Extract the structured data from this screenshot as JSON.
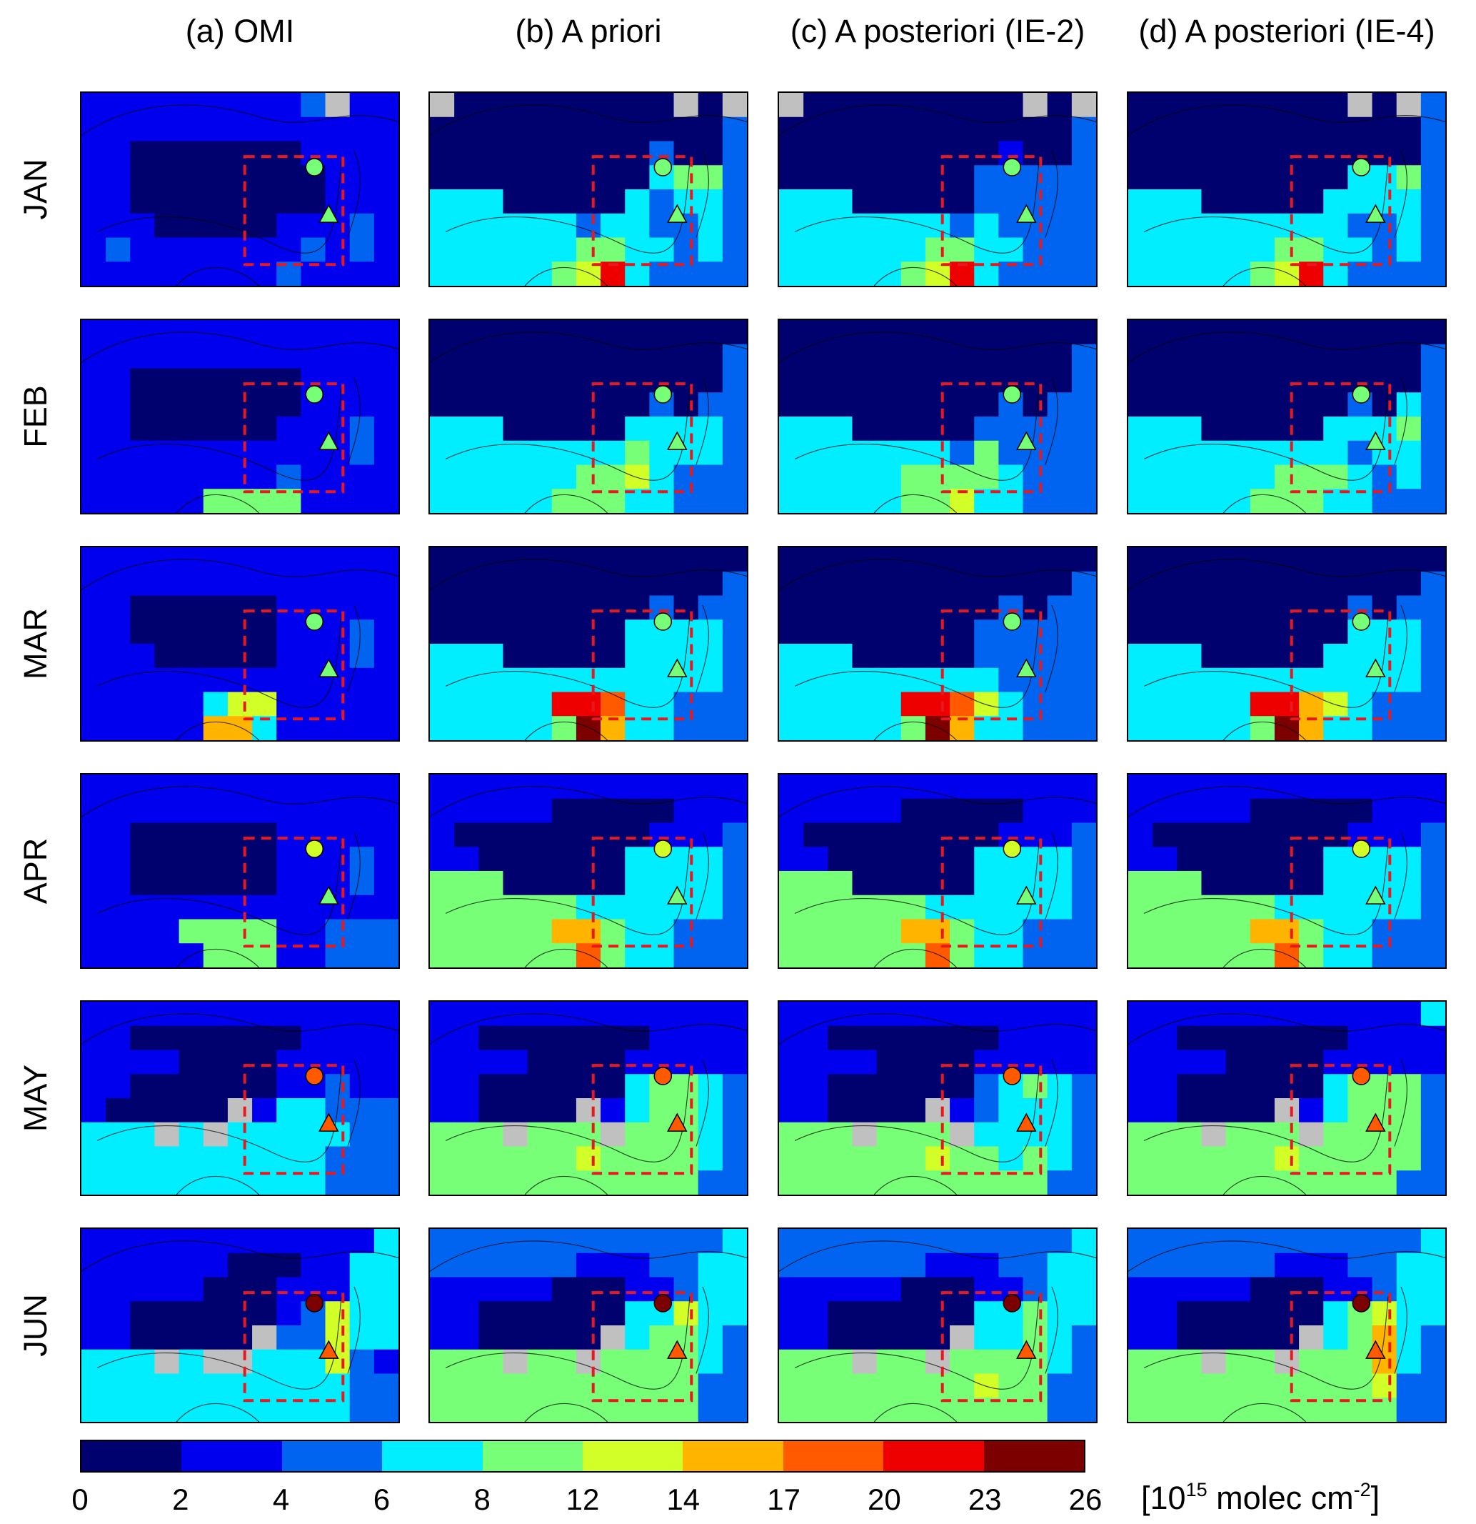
{
  "chart_data": {
    "type": "heatmap",
    "columns": [
      "(a) OMI",
      "(b) A priori",
      "(c) A posteriori (IE-2)",
      "(d) A posteriori (IE-4)"
    ],
    "rows": [
      "JAN",
      "FEB",
      "MAR",
      "APR",
      "MAY",
      "JUN"
    ],
    "colorbar": {
      "ticks": [
        "0",
        "2",
        "4",
        "6",
        "8",
        "12",
        "14",
        "17",
        "20",
        "23",
        "26"
      ],
      "colors": [
        "#00006e",
        "#0000ee",
        "#0064f0",
        "#00eeff",
        "#78ff78",
        "#d2ff28",
        "#ffb400",
        "#ff5a00",
        "#ee0000",
        "#7d0000"
      ],
      "unit_prefix": "[10",
      "unit_exp1": "15",
      "unit_mid": " molec cm",
      "unit_exp2": "-2",
      "unit_suffix": "]"
    },
    "missing_color": "#c0c0c0",
    "grid": {
      "cols": 13,
      "rows": 8
    },
    "level_key": "0=0-2, 1=2-4, 2=4-6, 3=6-8, 4=8-12, 5=12-14, 6=14-17, 7=17-20, 8=20-23, 9=23-26, G=no data",
    "markers": {
      "circle": {
        "JAN": 4,
        "FEB": 4,
        "MAR": 4,
        "APR": 5,
        "MAY": 7,
        "JUN": 9
      },
      "triangle": {
        "JAN": 4,
        "FEB": 4,
        "MAR": 4,
        "APR": 4,
        "MAY": 7,
        "JUN": 7
      }
    },
    "panels": {
      "JAN": [
        [
          "1111111112G11G12",
          "11111111111112",
          "1100000001111",
          "1100000000111",
          "1100000000111",
          "1110000011121",
          "1211111112121",
          "1111111121111"
        ],
        [
          "G000000000G0G2",
          "0000000000002",
          "0000000002002",
          "0000000003442",
          "3330000032332",
          "3333332332232",
          "3333334433232",
          "3333345832222"
        ],
        [
          "G000000000G0G2",
          "0000000000002",
          "0000000001002",
          "0000000022222",
          "3330000022222",
          "3333333232222",
          "3333334433222",
          "3333345832222"
        ],
        [
          "000000000G0G2",
          "0000000000002",
          "0000000000002",
          "0000000003342",
          "3330000033332",
          "3333333332232",
          "3333334433232",
          "3333345832222"
        ]
      ],
      "FEB": [
        [
          "1111111111111",
          "1111111111111",
          "1100000001111",
          "1100000001111",
          "1100000011121",
          "1111111111121",
          "1111111121111",
          "1111144441111"
        ],
        [
          "0000000000000",
          "0000000000002",
          "0000000000002",
          "0000000002022",
          "3330000033332",
          "3333333343332",
          "3333334453222",
          "3333344433222"
        ],
        [
          "0000000000000",
          "0000000000002",
          "0000000000002",
          "0000000002022",
          "3330000022222",
          "3333333242222",
          "3333344443222",
          "3333344533222"
        ],
        [
          "0000000000000",
          "0000000000002",
          "0000000000002",
          "0000000002032",
          "3330000033342",
          "3333333332332",
          "3333334443232",
          "3333344433222"
        ]
      ],
      "MAR": [
        [
          "1111111111111",
          "1111111111111",
          "1100000011111",
          "1100000011121",
          "1110000011121",
          "1111111111111",
          "1111135511111",
          "1111166311111"
        ],
        [
          "0000000000000",
          "0000000000002",
          "0000000002022",
          "0000000033332",
          "3330000033332",
          "3333333333332",
          "3333388733222",
          "3333349633222"
        ],
        [
          "0000000000000",
          "0000000000002",
          "0000000002022",
          "0000000022222",
          "3330000022222",
          "3333333332222",
          "3333388753222",
          "3333349633222"
        ],
        [
          "0000000000000",
          "0000000000002",
          "0000000002022",
          "0000000003332",
          "3330000033332",
          "3333333333332",
          "3333388653222",
          "3333349633222"
        ]
      ],
      "APR": [
        [
          "1111111111111",
          "1111111111111",
          "1100000011111",
          "1100000011121",
          "1100000011121",
          "1111111111111",
          "1111444411222",
          "1111144411222"
        ],
        [
          "1111111111111",
          "1111100000111",
          "1000000001112",
          "1100000033332",
          "4440000033332",
          "4444443333332",
          "4444466433222",
          "4444447433222"
        ],
        [
          "1111111111111",
          "1111100000111",
          "1000000001112",
          "1100000033332",
          "4440000033332",
          "4444443333332",
          "4444466433222",
          "4444447433222"
        ],
        [
          "1111111111111",
          "1111100000111",
          "1000000001112",
          "1100000033332",
          "4440000033332",
          "4444443333332",
          "4444466433222",
          "4444447433222"
        ]
      ],
      "MAY": [
        [
          "1111111111111",
          "1100000001111",
          "1111000011111",
          "11000000112111",
          "100000G133222",
          "333G3G33333222",
          "3333333333222",
          "3333333333222"
        ],
        [
          "1111111111111",
          "1100000001111",
          "1111000011111",
          "1100000034432",
          "110000G134432",
          "444G444G44432",
          "4444445444432",
          "4444444444422"
        ],
        [
          "1111111111111",
          "1100000001111",
          "1111000011111",
          "1100000023432",
          "110000G123332",
          "444G444G33332",
          "4444445443432",
          "4444444444422"
        ],
        [
          "1111111111113",
          "1100000001111",
          "1111000011111",
          "1100000034442",
          "110000G134442",
          "444G444G44442",
          "4444445444442",
          "4444444444422"
        ]
      ],
      "JUN": [
        [
          "1111111111113",
          "1111110001133",
          "1111100011133",
          "1100000012533",
          "1100000G22533",
          "333G3GG33352",
          "3333333333322",
          "3333333333322"
        ],
        [
          "2222222222223",
          "2222221112233",
          "1111100011233",
          "1100000033533",
          "1100000G34432",
          "444G44G444432",
          "4444444444422",
          "4444444444422"
        ],
        [
          "2222222222223",
          "2222221112233",
          "1111100011233",
          "1100000033433",
          "1100000G33432",
          "444G44G444432",
          "4444444454422",
          "4444444444422"
        ],
        [
          "2222222222223",
          "2222221112233",
          "1111100011233",
          "1100000034533",
          "1100000G34632",
          "444G44G444632",
          "4444444444522",
          "4444444444422"
        ]
      ]
    }
  }
}
